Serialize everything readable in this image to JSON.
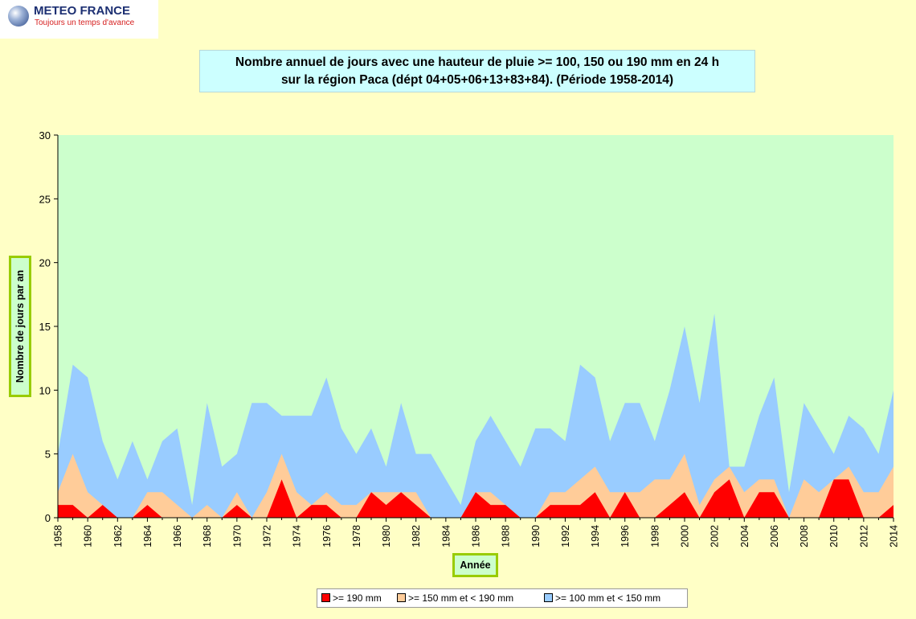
{
  "logo": {
    "name": "METEO FRANCE",
    "tagline": "Toujours un temps d'avance"
  },
  "title": {
    "line1": "Nombre annuel de jours avec une hauteur de pluie >= 100, 150 ou 190 mm en 24 h",
    "line2": "sur la région Paca (dépt 04+05+06+13+83+84). (Période 1958-2014)"
  },
  "colors": {
    "background": "#ffffc6",
    "plot_area": "#ccffcc",
    "series_190": "#ff0000",
    "series_150": "#ffcc99",
    "series_100": "#99ccff"
  },
  "chart_data": {
    "type": "area",
    "stacked": false,
    "xlabel": "Année",
    "ylabel": "Nombre de jours par an",
    "ylim": [
      0,
      30
    ],
    "yticks": [
      0,
      5,
      10,
      15,
      20,
      25,
      30
    ],
    "x": [
      1958,
      1959,
      1960,
      1961,
      1962,
      1963,
      1964,
      1965,
      1966,
      1967,
      1968,
      1969,
      1970,
      1971,
      1972,
      1973,
      1974,
      1975,
      1976,
      1977,
      1978,
      1979,
      1980,
      1981,
      1982,
      1983,
      1984,
      1985,
      1986,
      1987,
      1988,
      1989,
      1990,
      1991,
      1992,
      1993,
      1994,
      1995,
      1996,
      1997,
      1998,
      1999,
      2000,
      2001,
      2002,
      2003,
      2004,
      2005,
      2006,
      2007,
      2008,
      2009,
      2010,
      2011,
      2012,
      2013,
      2014
    ],
    "xticks": [
      "1958",
      "1960",
      "1962",
      "1964",
      "1966",
      "1968",
      "1970",
      "1972",
      "1974",
      "1976",
      "1978",
      "1980",
      "1982",
      "1984",
      "1986",
      "1988",
      "1990",
      "1992",
      "1994",
      "1996",
      "1998",
      "2000",
      "2002",
      "2004",
      "2006",
      "2008",
      "2010",
      "2012",
      "2014"
    ],
    "series": [
      {
        "name": ">= 100 mm et < 150 mm",
        "color": "#99ccff",
        "values": [
          5,
          12,
          11,
          6,
          3,
          6,
          3,
          6,
          7,
          1,
          9,
          4,
          5,
          9,
          9,
          8,
          8,
          8,
          11,
          7,
          5,
          7,
          4,
          9,
          5,
          5,
          3,
          1,
          6,
          8,
          6,
          4,
          7,
          7,
          6,
          12,
          11,
          6,
          9,
          9,
          6,
          10,
          15,
          9,
          16,
          4,
          4,
          8,
          11,
          2,
          9,
          7,
          5,
          8,
          7,
          5,
          10
        ]
      },
      {
        "name": ">= 150 mm et < 190 mm",
        "color": "#ffcc99",
        "values": [
          2,
          5,
          2,
          1,
          0,
          0,
          2,
          2,
          1,
          0,
          1,
          0,
          2,
          0,
          2,
          5,
          2,
          1,
          2,
          1,
          1,
          2,
          2,
          2,
          2,
          0,
          0,
          0,
          2,
          2,
          1,
          0,
          0,
          2,
          2,
          3,
          4,
          2,
          2,
          2,
          3,
          3,
          5,
          1,
          3,
          4,
          2,
          3,
          3,
          0,
          3,
          2,
          3,
          4,
          2,
          2,
          4
        ]
      },
      {
        "name": ">= 190 mm",
        "color": "#ff0000",
        "values": [
          1,
          1,
          0,
          1,
          0,
          0,
          1,
          0,
          0,
          0,
          0,
          0,
          1,
          0,
          0,
          3,
          0,
          1,
          1,
          0,
          0,
          2,
          1,
          2,
          1,
          0,
          0,
          0,
          2,
          1,
          1,
          0,
          0,
          1,
          1,
          1,
          2,
          0,
          2,
          0,
          0,
          1,
          2,
          0,
          2,
          3,
          0,
          2,
          2,
          0,
          0,
          0,
          3,
          3,
          0,
          0,
          1
        ]
      }
    ],
    "legend": {
      "position": "bottom",
      "entries": [
        {
          "label": ">= 190 mm",
          "color": "#ff0000"
        },
        {
          "label": ">= 150 mm et < 190 mm",
          "color": "#ffcc99"
        },
        {
          "label": ">= 100 mm et < 150 mm",
          "color": "#99ccff"
        }
      ]
    },
    "grid": false
  }
}
